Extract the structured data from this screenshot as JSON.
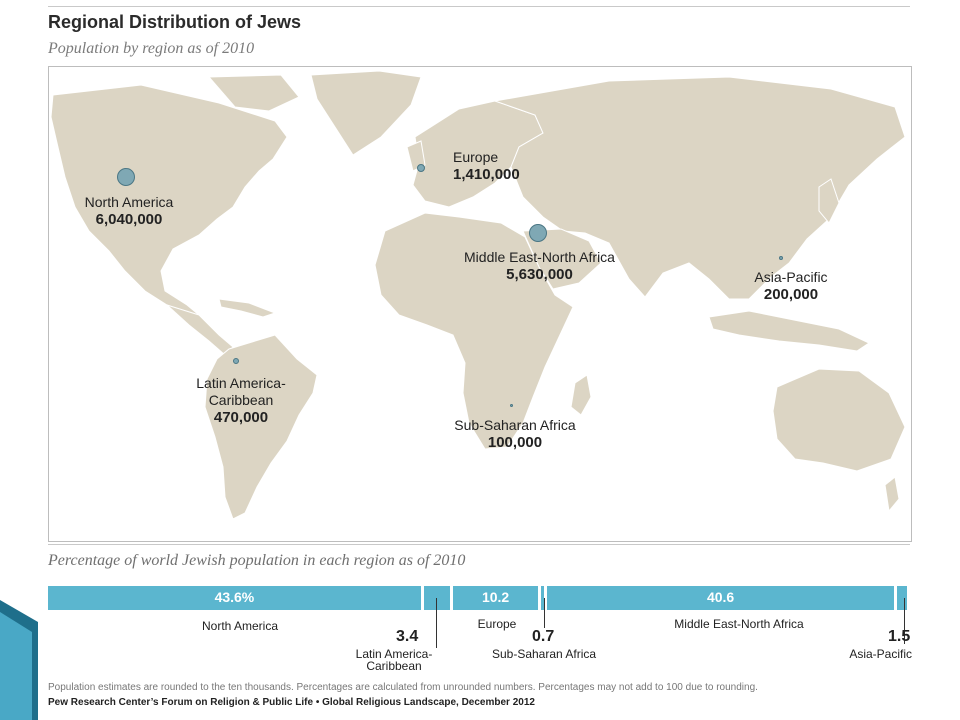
{
  "title": "Regional Distribution of Jews",
  "subtitle": "Population by region as of 2010",
  "map": {
    "regions": [
      {
        "name": "North America",
        "population": "6,040,000"
      },
      {
        "name": "Europe",
        "population": "1,410,000"
      },
      {
        "name": "Middle East-North Africa",
        "population": "5,630,000"
      },
      {
        "name": "Asia-Pacific",
        "population": "200,000"
      },
      {
        "name": "Latin America-Caribbean",
        "name_line1": "Latin America-",
        "name_line2": "Caribbean",
        "population": "470,000"
      },
      {
        "name": "Sub-Saharan Africa",
        "population": "100,000"
      }
    ],
    "land_color": "#dcd5c4",
    "bubble_color": "#7fa8b4"
  },
  "bar_section_title": "Percentage of world Jewish population in each region as of 2010",
  "chart_data": {
    "type": "bar",
    "stacked": true,
    "title": "Percentage of world Jewish population in each region as of 2010",
    "categories": [
      "North America",
      "Latin America-Caribbean",
      "Europe",
      "Sub-Saharan Africa",
      "Middle East-North Africa",
      "Asia-Pacific"
    ],
    "values": [
      43.6,
      3.4,
      10.2,
      0.7,
      40.6,
      1.5
    ],
    "value_labels": [
      "43.6%",
      "3.4",
      "10.2",
      "0.7",
      "40.6",
      "1.5"
    ],
    "bar_color": "#5bb6cf"
  },
  "bar_labels": {
    "north_america": "North America",
    "latin_line1": "Latin America-",
    "latin_line2": "Caribbean",
    "europe": "Europe",
    "sub_saharan": "Sub-Saharan Africa",
    "mena": "Middle East-North Africa",
    "asia_pacific": "Asia-Pacific"
  },
  "note": "Population estimates are rounded to the ten thousands. Percentages are calculated from unrounded numbers. Percentages may not add to 100 due to rounding.",
  "source": "Pew Research Center’s Forum on Religion & Public Life • Global Religious Landscape, December 2012",
  "colors": {
    "accent_dark": "#1f6f8b",
    "accent_light": "#49a8c6"
  }
}
